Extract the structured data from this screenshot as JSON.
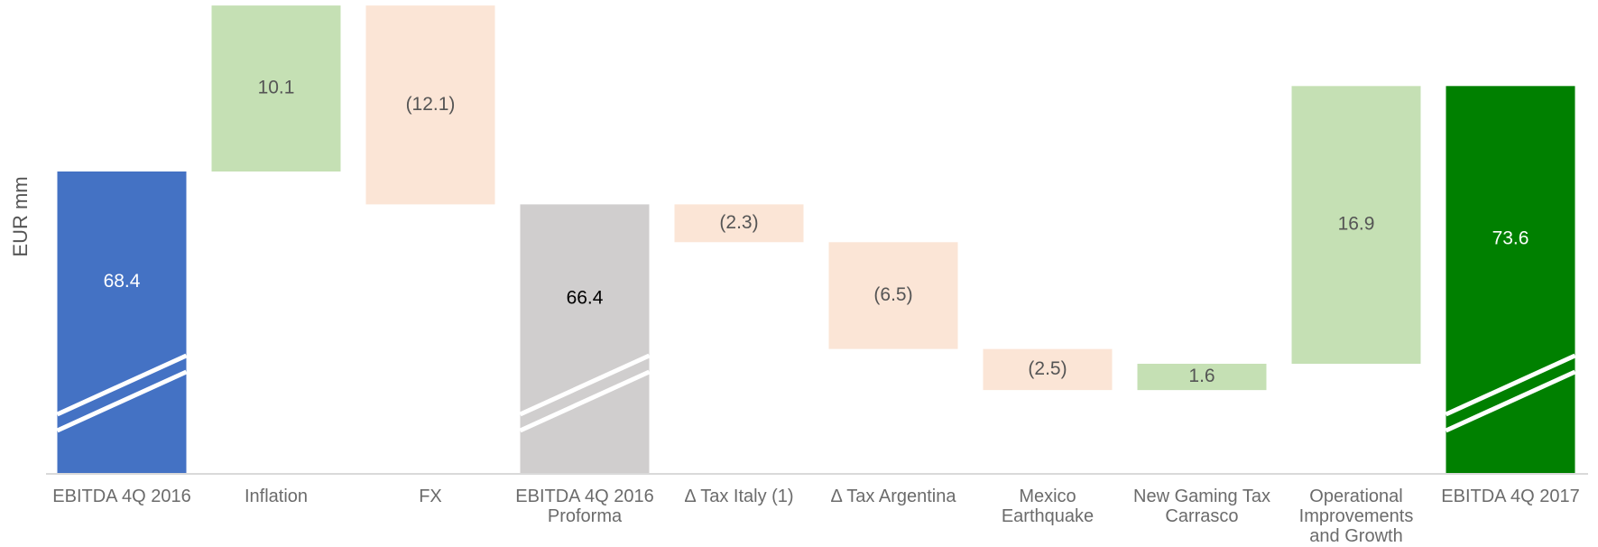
{
  "chart_data": {
    "type": "waterfall",
    "ylabel": "EUR mm",
    "categories": [
      "EBITDA 4Q 2016",
      "Inflation",
      "FX",
      "EBITDA 4Q 2016\nProforma",
      "Δ Tax Italy (1)",
      "Δ Tax Argentina",
      "Mexico\nEarthquake",
      "New Gaming Tax\nCarrasco",
      "Operational\nImprovements\nand Growth",
      "EBITDA 4Q 2017"
    ],
    "measure": [
      "absolute",
      "relative",
      "relative",
      "absolute",
      "relative",
      "relative",
      "relative",
      "relative",
      "relative",
      "absolute"
    ],
    "values": [
      68.4,
      10.1,
      -12.1,
      66.4,
      -2.3,
      -6.5,
      -2.5,
      1.6,
      16.9,
      73.6
    ],
    "value_labels": [
      "68.4",
      "10.1",
      "(12.1)",
      "66.4",
      "(2.3)",
      "(6.5)",
      "(2.5)",
      "1.6",
      "16.9",
      "73.6"
    ],
    "colors": [
      "#4472c4",
      "#c5e0b4",
      "#fbe5d6",
      "#d0cece",
      "#fbe5d6",
      "#fbe5d6",
      "#fbe5d6",
      "#c5e0b4",
      "#c5e0b4",
      "#008000"
    ],
    "ylim": [
      50,
      79
    ],
    "axis_break": true
  }
}
